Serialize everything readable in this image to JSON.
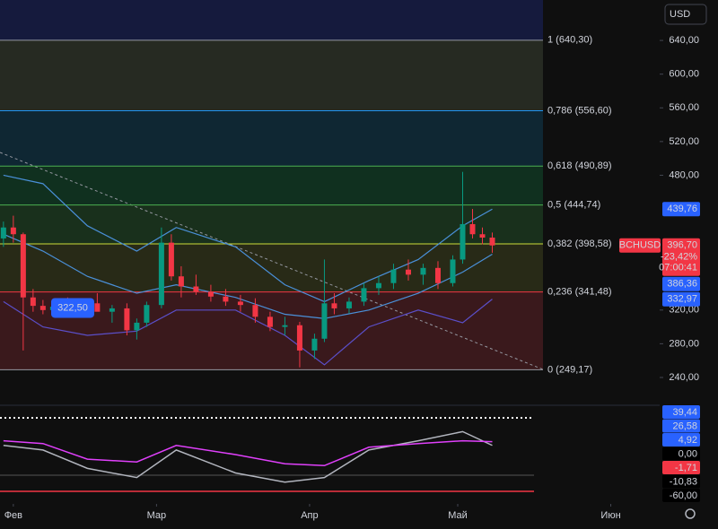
{
  "chart_data": {
    "type": "candlestick",
    "symbol": "BCHUSD",
    "currency": "USD",
    "ylim": [
      207,
      688
    ],
    "xlim": [
      -2.7,
      130.9
    ],
    "yticks": [
      {
        "value": 640,
        "label": "640,00"
      },
      {
        "value": 600,
        "label": "600,00"
      },
      {
        "value": 560,
        "label": "560,00"
      },
      {
        "value": 520,
        "label": "520,00"
      },
      {
        "value": 480,
        "label": "480,00"
      },
      {
        "value": 320,
        "label": "320,00"
      },
      {
        "value": 280,
        "label": "280,00"
      },
      {
        "value": 240,
        "label": "240,00"
      }
    ],
    "xticks": [
      {
        "value": 0,
        "label": "Фев"
      },
      {
        "value": 29,
        "label": "Мар"
      },
      {
        "value": 60,
        "label": "Апр"
      },
      {
        "value": 90,
        "label": "Май"
      },
      {
        "value": 121,
        "label": "Июн"
      }
    ],
    "up_color": "#089981",
    "down_color": "#f23645",
    "fib_levels": [
      {
        "value": 640.3,
        "label": "1 (640,30)",
        "color": "#9598a1",
        "zone": "#262a22"
      },
      {
        "value": 556.6,
        "label": "0,786 (556,60)",
        "color": "#2196f3",
        "zone": "#0f2733"
      },
      {
        "value": 490.89,
        "label": "0,618 (490,89)",
        "color": "#4caf50",
        "zone": "#10301f"
      },
      {
        "value": 444.74,
        "label": "0,5 (444,74)",
        "color": "#4caf50",
        "zone": "#19301c"
      },
      {
        "value": 398.58,
        "label": "0,382 (398,58)",
        "color": "#cddc39",
        "zone": "#282a17"
      },
      {
        "value": 341.48,
        "label": "0,236 (341,48)",
        "color": "#f23645",
        "zone": "#3a191c"
      },
      {
        "value": 249.17,
        "label": "0 (249,17)",
        "color": "#9598a1",
        "zone": "#000000"
      }
    ],
    "x": [
      -2,
      0,
      2,
      4,
      6,
      8,
      11,
      14,
      17,
      20,
      23,
      25,
      27,
      30,
      32,
      34,
      37,
      40,
      43,
      46,
      49,
      52,
      55,
      58,
      61,
      63,
      65,
      68,
      71,
      74,
      77,
      80,
      83,
      86,
      89,
      91,
      93,
      95,
      97
    ],
    "open": [
      405,
      418,
      410,
      335,
      325,
      320,
      324,
      322,
      328,
      318,
      322,
      296,
      305,
      326,
      400,
      360,
      348,
      342,
      336,
      330,
      326,
      312,
      300,
      302,
      272,
      286,
      328,
      322,
      330,
      346,
      352,
      368,
      362,
      370,
      352,
      380,
      422,
      410,
      406
    ],
    "high": [
      425,
      432,
      412,
      345,
      332,
      328,
      335,
      330,
      340,
      326,
      328,
      310,
      330,
      418,
      410,
      372,
      362,
      350,
      345,
      338,
      334,
      318,
      312,
      306,
      292,
      380,
      340,
      335,
      352,
      360,
      375,
      380,
      375,
      378,
      385,
      484,
      440,
      418,
      412
    ],
    "low": [
      395,
      400,
      272,
      318,
      315,
      312,
      318,
      316,
      320,
      305,
      290,
      285,
      300,
      322,
      355,
      335,
      338,
      330,
      325,
      318,
      305,
      295,
      290,
      252,
      262,
      282,
      315,
      316,
      325,
      338,
      345,
      355,
      350,
      345,
      348,
      375,
      405,
      398,
      388
    ],
    "close": [
      418,
      410,
      335,
      325,
      320,
      324,
      322,
      328,
      318,
      322,
      296,
      305,
      326,
      400,
      360,
      348,
      342,
      336,
      330,
      326,
      312,
      300,
      302,
      272,
      286,
      328,
      322,
      330,
      346,
      352,
      368,
      362,
      370,
      352,
      380,
      422,
      410,
      406,
      396.7
    ],
    "bands": {
      "x": [
        -2,
        6,
        15,
        25,
        33,
        45,
        55,
        63,
        72,
        82,
        91,
        97
      ],
      "color": "#4a90d9",
      "lower_color": "#5b4fc9",
      "upper": [
        480,
        470,
        420,
        390,
        418,
        395,
        350,
        330,
        355,
        380,
        420,
        439.76
      ],
      "middle": [
        410,
        390,
        360,
        340,
        350,
        335,
        315,
        310,
        320,
        340,
        365,
        386.36
      ],
      "lower": [
        330,
        300,
        290,
        295,
        320,
        320,
        290,
        255,
        300,
        320,
        305,
        332.97
      ]
    },
    "price_badges": [
      {
        "value": 439.76,
        "label": "439,76",
        "color": "#2962ff"
      },
      {
        "value": 396.7,
        "label": "396,70",
        "color": "#f23645",
        "change": {
          "value": -23.42,
          "label": "-23,42%"
        },
        "countdown": "07:00:41"
      },
      {
        "value": 386.36,
        "label": "386,36",
        "color": "#2962ff"
      },
      {
        "value": 332.97,
        "label": "332,97",
        "color": "#2962ff"
      }
    ],
    "annotation": {
      "value": 322.5,
      "label": "322,50"
    },
    "oscillator": {
      "ylim": [
        -40,
        40
      ],
      "series": [
        {
          "name": "osc1",
          "color": "#b2b5be",
          "values": [
            10,
            5,
            -15,
            -25,
            5,
            -20,
            -30,
            -25,
            5,
            15,
            25,
            10
          ]
        },
        {
          "name": "osc2",
          "color": "#e040fb",
          "values": [
            15,
            12,
            -5,
            -8,
            10,
            0,
            -10,
            -12,
            8,
            12,
            15,
            14
          ]
        }
      ],
      "badges": [
        {
          "value": 39.44,
          "label": "39,44",
          "color": "#2962ff"
        },
        {
          "value": 26.58,
          "label": "26,58",
          "color": "#2962ff"
        },
        {
          "value": 4.92,
          "label": "4,92",
          "color": "#2962ff"
        },
        {
          "value": 0,
          "label": "0,00",
          "color": "#000000"
        },
        {
          "value": -1.71,
          "label": "-1,71",
          "color": "#f23645"
        },
        {
          "value": -10.83,
          "label": "-10,83",
          "color": "#000000"
        },
        {
          "value": -60,
          "label": "-60,00",
          "color": "#000000"
        }
      ]
    }
  }
}
